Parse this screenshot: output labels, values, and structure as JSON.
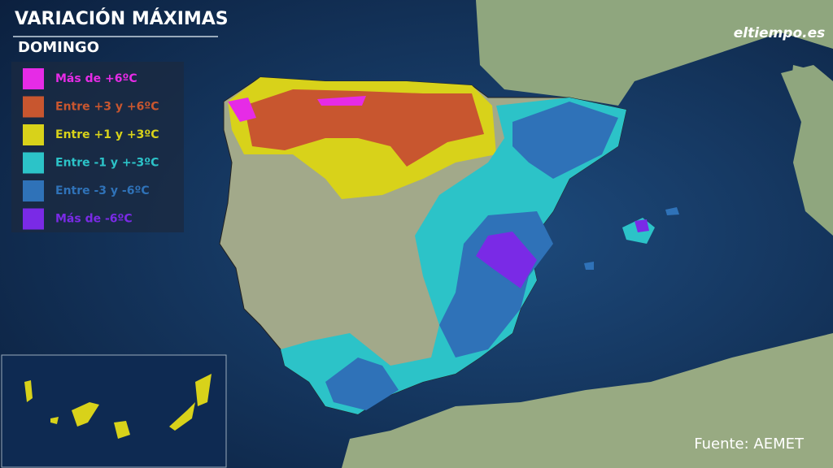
{
  "header": {
    "title": "VARIACIÓN MÁXIMAS",
    "subtitle": "DOMINGO",
    "logo": "eltiempo.es"
  },
  "legend": [
    {
      "label": "Más de +6ºC",
      "color": "#e62be6"
    },
    {
      "label": "Entre +3 y +6ºC",
      "color": "#c8562f"
    },
    {
      "label": "Entre +1 y +3ºC",
      "color": "#d8d21a"
    },
    {
      "label": "Entre -1 y +-3ºC",
      "color": "#2cc3c8"
    },
    {
      "label": "Entre -3 y -6ºC",
      "color": "#2f72b8"
    },
    {
      "label": "Más de -6ºC",
      "color": "#7a2ae6"
    }
  ],
  "source": "Fuente: AEMET"
}
